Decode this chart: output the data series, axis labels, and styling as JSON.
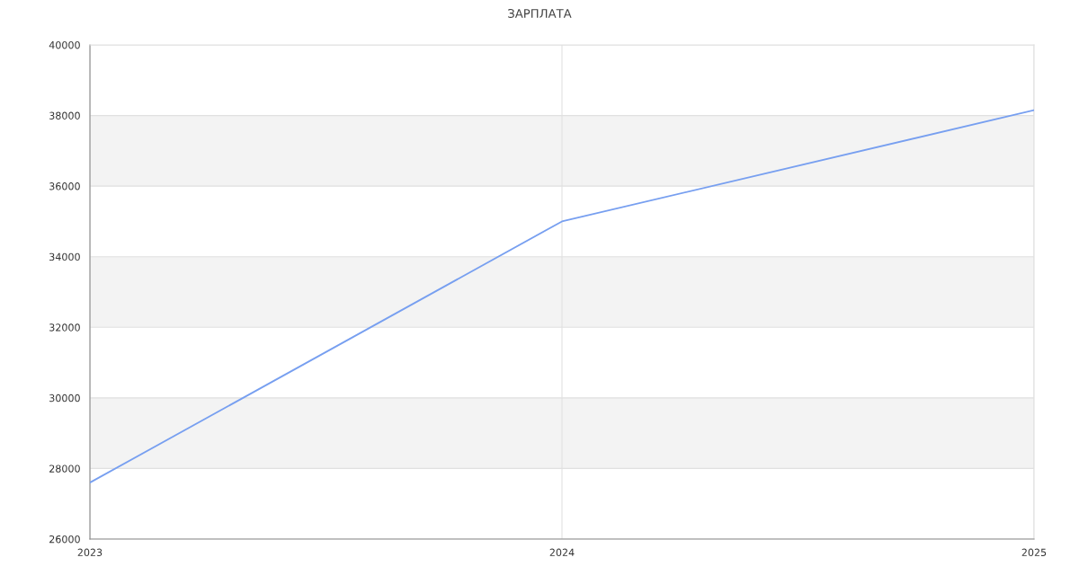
{
  "chart_data": {
    "type": "line",
    "title": "ЗАРПЛАТА",
    "x": [
      2023,
      2024,
      2025
    ],
    "series": [
      {
        "color": "#779ff0",
        "values": [
          27600,
          35000,
          38150
        ]
      }
    ],
    "xlim": [
      2023,
      2025
    ],
    "xticks": [
      2023,
      2024,
      2025
    ],
    "ylim": [
      26000,
      40000
    ],
    "yticks": [
      26000,
      28000,
      30000,
      32000,
      34000,
      36000,
      38000,
      40000
    ],
    "grid": true,
    "marker": "none",
    "line_style": "solid",
    "bands": [
      {
        "axis": "y",
        "from": 28000,
        "to": 30000,
        "color": "#f3f3f3"
      },
      {
        "axis": "y",
        "from": 32000,
        "to": 34000,
        "color": "#f3f3f3"
      },
      {
        "axis": "y",
        "from": 36000,
        "to": 38000,
        "color": "#f3f3f3"
      }
    ]
  }
}
